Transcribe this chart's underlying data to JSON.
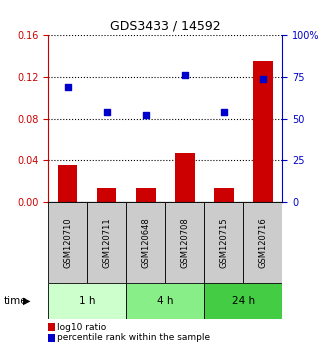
{
  "title": "GDS3433 / 14592",
  "samples": [
    "GSM120710",
    "GSM120711",
    "GSM120648",
    "GSM120708",
    "GSM120715",
    "GSM120716"
  ],
  "log10_ratio": [
    0.035,
    0.013,
    0.013,
    0.047,
    0.013,
    0.135
  ],
  "percentile_rank": [
    69,
    54,
    52,
    76,
    54,
    74
  ],
  "bar_color": "#cc0000",
  "dot_color": "#0000cc",
  "left_ylim": [
    0,
    0.16
  ],
  "right_ylim": [
    0,
    100
  ],
  "left_yticks": [
    0,
    0.04,
    0.08,
    0.12,
    0.16
  ],
  "right_yticks": [
    0,
    25,
    50,
    75,
    100
  ],
  "right_yticklabels": [
    "0",
    "25",
    "50",
    "75",
    "100%"
  ],
  "groups": [
    {
      "label": "1 h",
      "indices": [
        0,
        1
      ],
      "color": "#ccffcc"
    },
    {
      "label": "4 h",
      "indices": [
        2,
        3
      ],
      "color": "#88ee88"
    },
    {
      "label": "24 h",
      "indices": [
        4,
        5
      ],
      "color": "#44cc44"
    }
  ],
  "legend_bar_label": "log10 ratio",
  "legend_dot_label": "percentile rank within the sample",
  "time_label": "time",
  "background_color": "#ffffff",
  "plot_bg_color": "#ffffff",
  "sample_box_color": "#cccccc",
  "axis_label_color_left": "#cc0000",
  "axis_label_color_right": "#0000cc",
  "dotted_line_color": "#000000",
  "bar_width": 0.5
}
